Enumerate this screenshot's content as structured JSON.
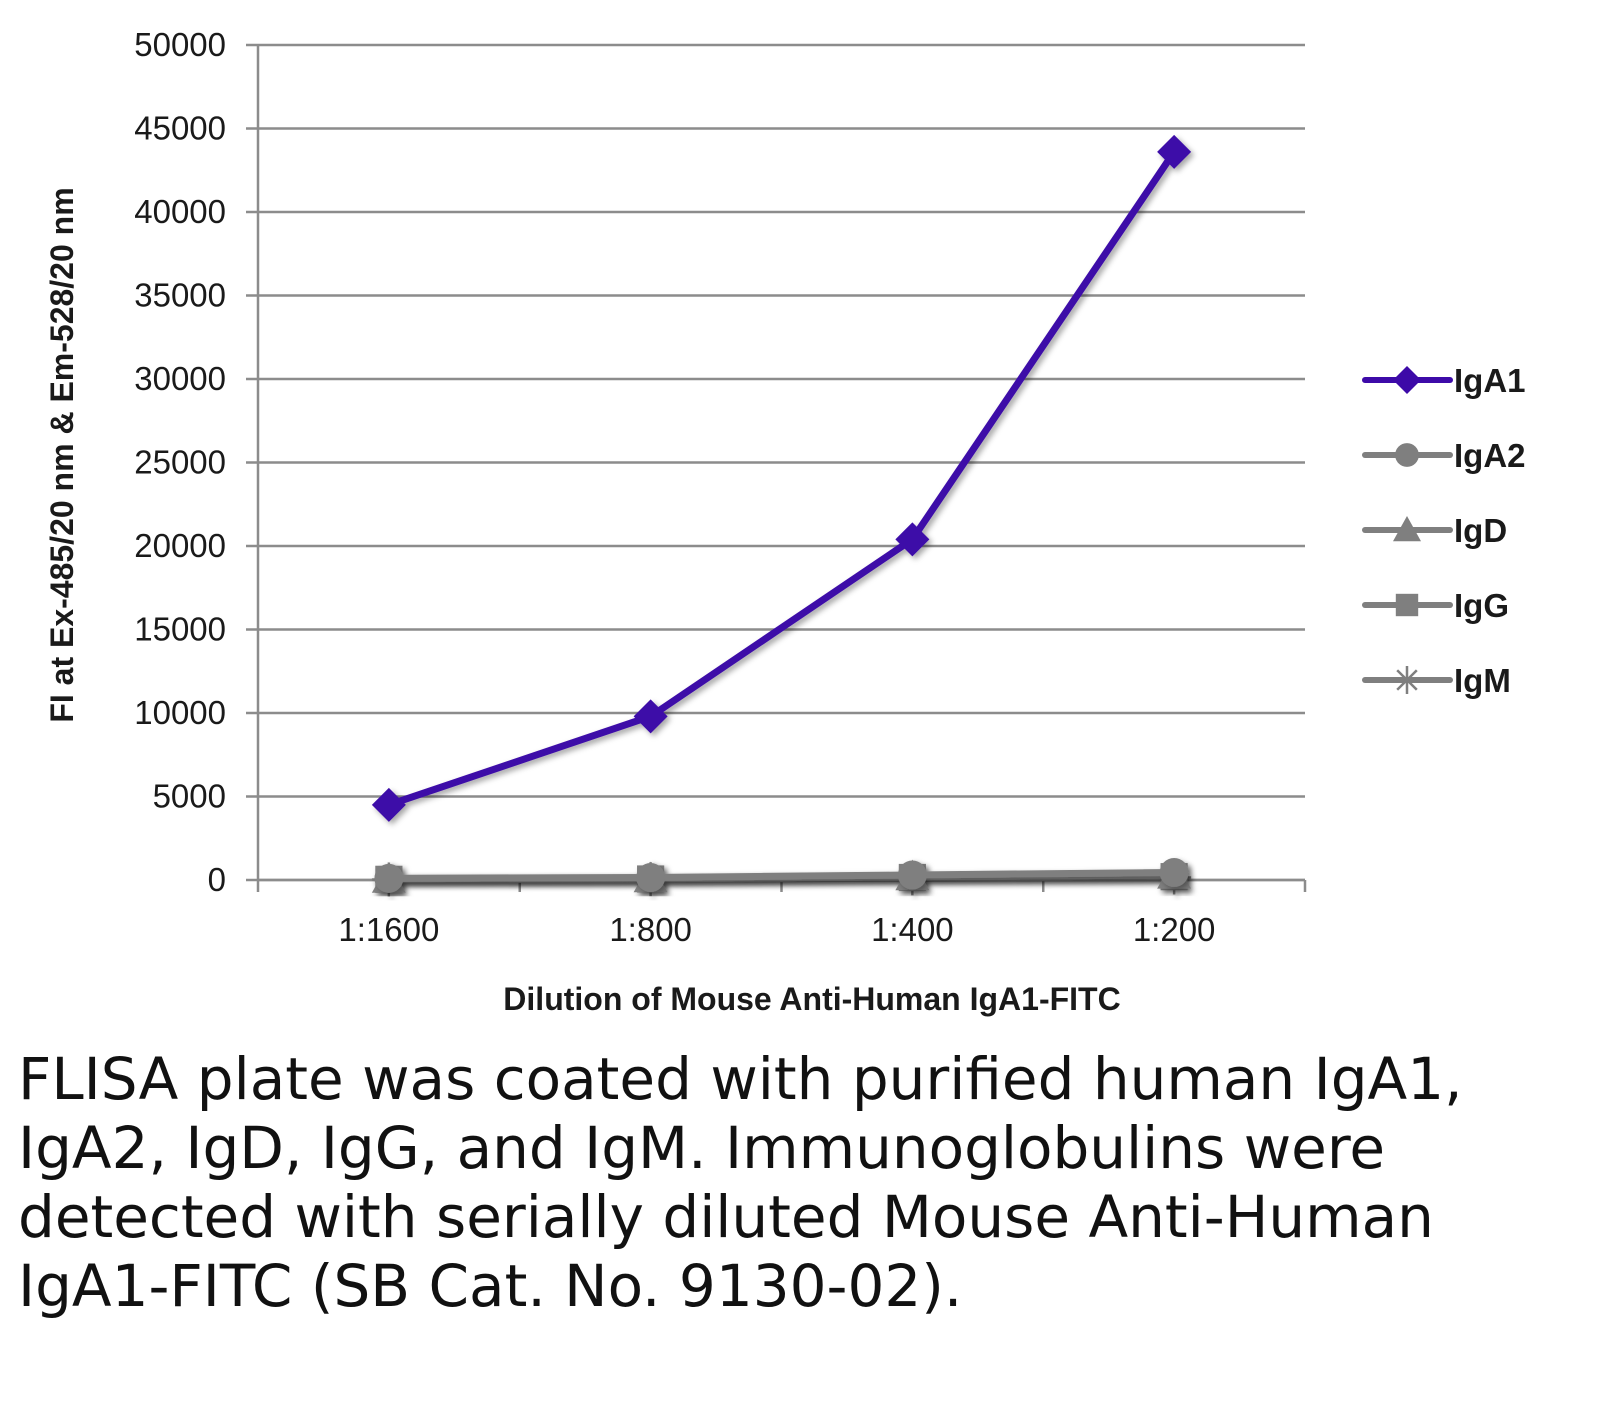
{
  "chart_data": {
    "type": "line",
    "title": "",
    "xlabel": "Dilution of Mouse Anti-Human IgA1-FITC",
    "ylabel": "FI at Ex-485/20 nm & Em-528/20 nm",
    "categories": [
      "1:1600",
      "1:800",
      "1:400",
      "1:200"
    ],
    "ylim": [
      0,
      50000
    ],
    "yticks": [
      0,
      5000,
      10000,
      15000,
      20000,
      25000,
      30000,
      35000,
      40000,
      45000,
      50000
    ],
    "grid": true,
    "legend_position": "right",
    "series": [
      {
        "name": "IgA1",
        "values": [
          4500,
          9800,
          20400,
          43600
        ],
        "color": "#3d0aa8",
        "marker": "diamond"
      },
      {
        "name": "IgA2",
        "values": [
          100,
          150,
          300,
          450
        ],
        "color": "#7f7f7f",
        "marker": "circle"
      },
      {
        "name": "IgD",
        "values": [
          50,
          80,
          200,
          300
        ],
        "color": "#7f7f7f",
        "marker": "triangle"
      },
      {
        "name": "IgG",
        "values": [
          40,
          60,
          150,
          200
        ],
        "color": "#7f7f7f",
        "marker": "square"
      },
      {
        "name": "IgM",
        "values": [
          30,
          50,
          100,
          150
        ],
        "color": "#7f7f7f",
        "marker": "star"
      }
    ]
  },
  "caption": "FLISA plate was coated with purified human IgA1, IgA2, IgD, IgG, and IgM. Immunoglobulins were detected with serially diluted Mouse Anti-Human IgA1-FITC (SB Cat. No. 9130-02)."
}
